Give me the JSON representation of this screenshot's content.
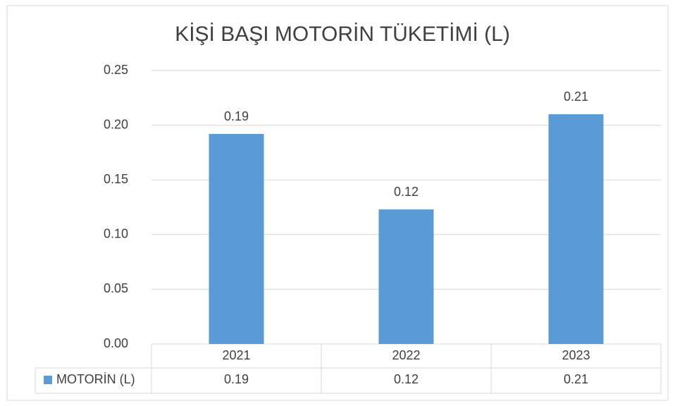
{
  "chart_data": {
    "type": "bar",
    "title": "KİŞİ BAŞI MOTORİN TÜKETİMİ (L)",
    "categories": [
      "2021",
      "2022",
      "2023"
    ],
    "series": [
      {
        "name": "MOTORİN (L)",
        "color": "#5b9bd5",
        "values": [
          0.192,
          0.123,
          0.21
        ],
        "value_labels": [
          "0.19",
          "0.12",
          "0.21"
        ]
      }
    ],
    "ylim": [
      0,
      0.25
    ],
    "yticks": [
      {
        "value": 0,
        "label": "0.00"
      },
      0.05,
      {
        "value": 0.1,
        "label": "0.10"
      },
      0.15,
      {
        "value": 0.2,
        "label": "0.20"
      },
      0.25
    ],
    "grid": true,
    "data_table": true
  }
}
